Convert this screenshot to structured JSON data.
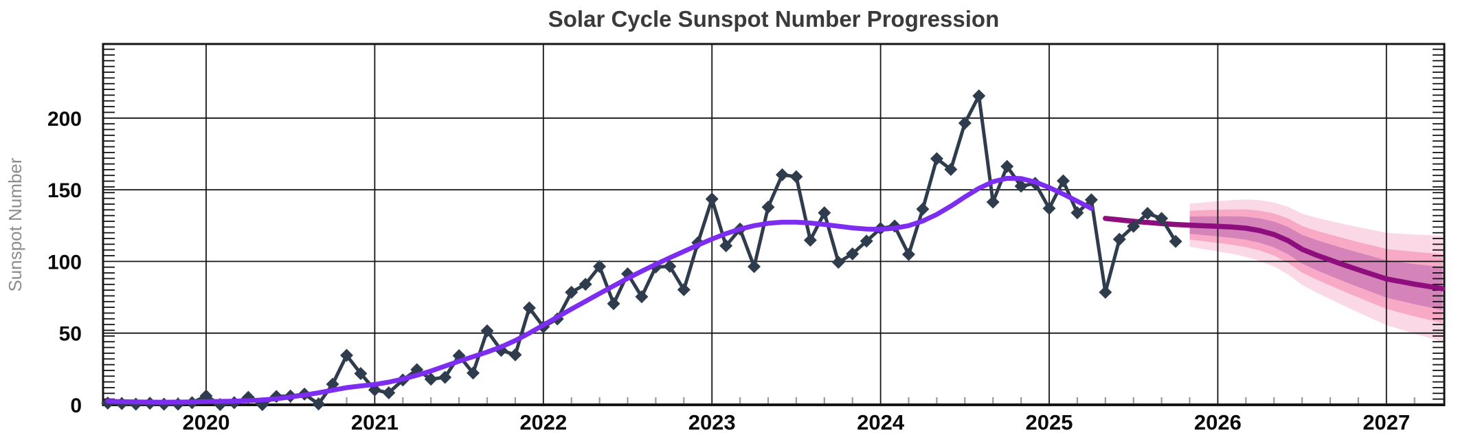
{
  "page": {
    "background": "#ffffff"
  },
  "chart_data": {
    "type": "line",
    "title": "Solar Cycle Sunspot Number Progression",
    "xlabel": "",
    "ylabel": "Sunspot Number",
    "x_tick_labels": [
      "2020",
      "2021",
      "2022",
      "2023",
      "2024",
      "2025",
      "2026",
      "2027"
    ],
    "x_tick_years": [
      2020,
      2021,
      2022,
      2023,
      2024,
      2025,
      2026,
      2027
    ],
    "y_ticks": [
      0,
      50,
      100,
      150,
      200
    ],
    "xlim": [
      2019.38,
      2027.35
    ],
    "ylim": [
      0,
      251.5
    ],
    "grid": true,
    "legend": false,
    "minor_ticks": {
      "y_step": 4,
      "x_step_months": 2
    },
    "colors": {
      "observed": "#2e3c4d",
      "smoothed": "#7d2df0",
      "prediction": "#8e0e7d",
      "band_inner": "#d584ba",
      "band_middle": "#f8a9c6",
      "band_outer": "#fbd8e6",
      "grid": "#141414",
      "spine": "#161616",
      "title": "#3a3a3a",
      "tick_label": "#0a0a0a",
      "y_axis_label": "#8d8d8d",
      "x_minor_tick": "#9a9a9a"
    },
    "series": [
      {
        "name": "observed-monthly-sunspot-number",
        "style": "line+markers",
        "marker": "diamond",
        "start_year": 2019,
        "start_month": 6,
        "values": [
          1.2,
          0.9,
          0.5,
          1.1,
          0.4,
          0.5,
          1.5,
          6.2,
          0.2,
          1.5,
          5.2,
          0.2,
          5.8,
          6.1,
          7.5,
          0.6,
          14.4,
          34.5,
          21.8,
          10.4,
          8.4,
          17.3,
          24.5,
          17.9,
          19.2,
          34.3,
          22.2,
          51.6,
          38.0,
          34.9,
          67.6,
          54.4,
          59.9,
          78.5,
          84.1,
          96.5,
          70.5,
          91.4,
          75.4,
          96.1,
          96.6,
          80.3,
          113.1,
          143.6,
          110.9,
          122.6,
          96.4,
          137.9,
          160.5,
          159.1,
          114.8,
          133.9,
          99.4,
          105.3,
          114.2,
          123.0,
          124.7,
          104.9,
          136.5,
          171.7,
          164.2,
          196.5,
          215.5,
          141.4,
          166.3,
          152.5,
          154.5,
          137.0,
          156.2,
          133.9,
          143.0,
          78.5,
          115.5,
          124.5,
          133.5,
          130.0,
          114.0
        ]
      },
      {
        "name": "smoothed-sunspot-number",
        "style": "line",
        "start_year": 2019,
        "start_month": 6,
        "values": [
          2.5,
          2.2,
          2.0,
          1.9,
          1.8,
          1.9,
          2.0,
          2.2,
          2.4,
          2.6,
          2.9,
          3.4,
          4.2,
          5.4,
          6.8,
          8.4,
          10.2,
          12.0,
          13.2,
          14.2,
          15.8,
          18.0,
          20.6,
          23.6,
          27.0,
          30.4,
          33.6,
          36.8,
          40.4,
          44.8,
          50.0,
          55.6,
          61.2,
          66.8,
          72.2,
          77.6,
          83.0,
          88.2,
          93.2,
          98.0,
          102.6,
          107.0,
          111.4,
          115.6,
          119.4,
          122.6,
          125.0,
          126.6,
          127.4,
          127.4,
          126.8,
          125.8,
          124.6,
          123.4,
          122.6,
          122.4,
          123.2,
          125.0,
          128.2,
          132.8,
          138.6,
          145.0,
          151.0,
          155.6,
          158.0,
          157.8,
          155.4,
          151.6,
          147.0,
          142.0,
          137.0
        ]
      },
      {
        "name": "predicted-sunspot-number",
        "style": "line",
        "start_year": 2025,
        "start_month": 5,
        "values": [
          130.0,
          129.0,
          128.0,
          127.2,
          126.4,
          125.8,
          125.3,
          124.9,
          124.5,
          124.0,
          123.2,
          121.5,
          118.8,
          114.5,
          108.5,
          104.5,
          101.0,
          97.5,
          94.2,
          91.0,
          87.8,
          86.0,
          84.2,
          82.6,
          81.0
        ]
      }
    ],
    "uncertainty_bands": {
      "start_year": 2025,
      "start_month": 11,
      "center_from_series": "predicted-sunspot-number",
      "center_offset_index": 6,
      "half_widths": {
        "outer": [
          15.0,
          16.3,
          17.5,
          18.7,
          20.0,
          21.2,
          22.3,
          23.6,
          24.8,
          26.0,
          27.3,
          28.5,
          29.7,
          31.0,
          32.2,
          33.3,
          34.6,
          35.8,
          37.0
        ],
        "middle": [
          10.0,
          10.8,
          11.6,
          12.3,
          13.2,
          13.9,
          14.7,
          15.5,
          16.3,
          17.0,
          17.8,
          18.6,
          19.3,
          20.2,
          20.9,
          21.7,
          22.5,
          23.3,
          24.0
        ],
        "inner": [
          6.0,
          6.5,
          7.0,
          7.5,
          8.0,
          8.5,
          9.0,
          9.5,
          10.0,
          10.5,
          11.0,
          11.5,
          12.0,
          12.5,
          13.0,
          13.5,
          14.0,
          14.5,
          15.0
        ]
      }
    }
  }
}
